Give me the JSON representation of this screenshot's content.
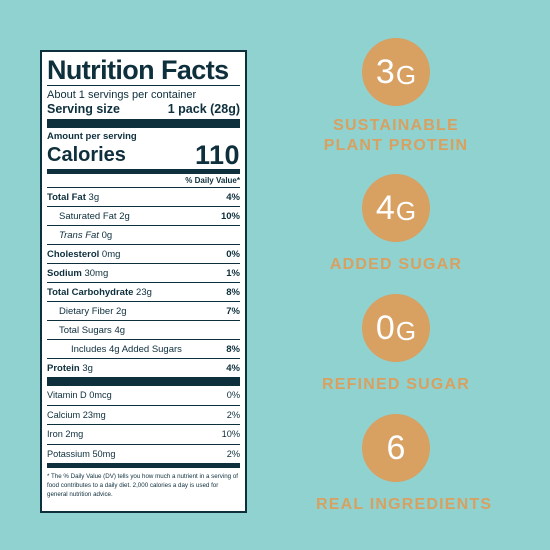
{
  "label": {
    "title": "Nutrition Facts",
    "servings": "About 1 servings per container",
    "serving_size_label": "Serving size",
    "serving_size_value": "1 pack (28g)",
    "amount_per_serving": "Amount per serving",
    "calories_label": "Calories",
    "calories_value": "110",
    "daily_value_header": "% Daily Value*",
    "nutrients": [
      {
        "name": "Total Fat",
        "amount": "3g",
        "dv": "4%"
      },
      {
        "name": "Saturated Fat",
        "amount": "2g",
        "dv": "10%"
      },
      {
        "name": "Trans Fat",
        "amount": "0g",
        "dv": ""
      },
      {
        "name": "Cholesterol",
        "amount": "0mg",
        "dv": "0%"
      },
      {
        "name": "Sodium",
        "amount": "30mg",
        "dv": "1%"
      },
      {
        "name": "Total Carbohydrate",
        "amount": "23g",
        "dv": "8%"
      },
      {
        "name": "Dietary Fiber",
        "amount": "2g",
        "dv": "7%"
      },
      {
        "name": "Total Sugars",
        "amount": "4g",
        "dv": ""
      },
      {
        "name": "Includes 4g Added Sugars",
        "amount": "",
        "dv": "8%"
      },
      {
        "name": "Protein",
        "amount": "3g",
        "dv": "4%"
      }
    ],
    "vitamins": [
      {
        "name": "Vitamin D 0mcg",
        "dv": "0%"
      },
      {
        "name": "Calcium 23mg",
        "dv": "2%"
      },
      {
        "name": "Iron 2mg",
        "dv": "10%"
      },
      {
        "name": "Potassium 50mg",
        "dv": "2%"
      }
    ],
    "footnote": "* The % Daily Value (DV) tells you how much a nutrient in a serving of food contributes to a daily diet. 2,000 calories a day is used for general nutrition advice."
  },
  "claims": [
    {
      "number": "3",
      "unit": "G",
      "text_line1": "SUSTAINABLE",
      "text_line2": "PLANT PROTEIN"
    },
    {
      "number": "4",
      "unit": "G",
      "text_line1": "ADDED SUGAR",
      "text_line2": ""
    },
    {
      "number": "0",
      "unit": "G",
      "text_line1": "REFINED SUGAR",
      "text_line2": ""
    },
    {
      "number": "6",
      "unit": "",
      "text_line1": "REAL INGREDIENTS",
      "text_line2": ""
    }
  ],
  "colors": {
    "background": "#8fd2cf",
    "label_ink": "#0e2f3c",
    "accent": "#d8a061"
  }
}
